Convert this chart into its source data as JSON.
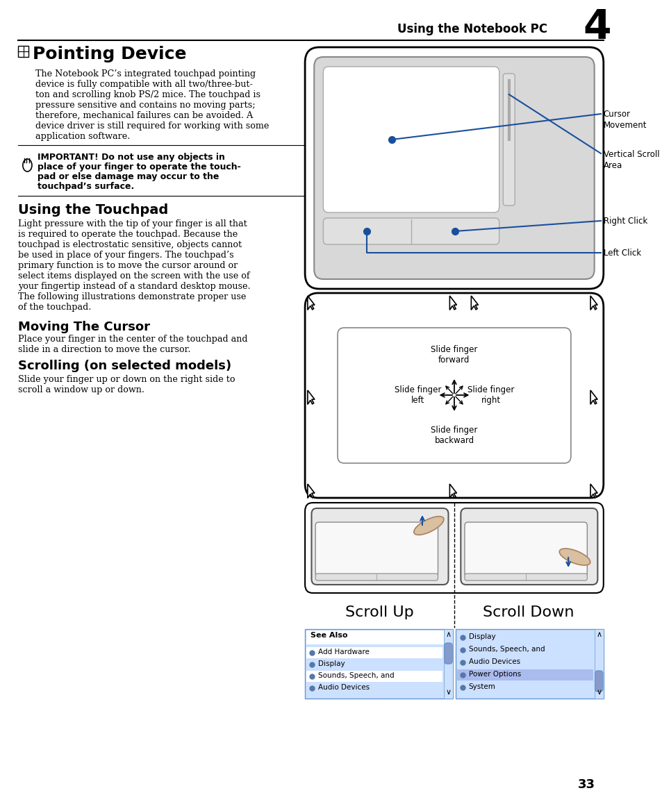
{
  "page_title": "Using the Notebook PC",
  "chapter_num": "4",
  "page_num": "33",
  "section1_title": "Pointing Device",
  "section1_body_lines": [
    "The Notebook PC’s integrated touchpad pointing",
    "device is fully compatible with all two/three-but-",
    "ton and scrolling knob PS/2 mice. The touchpad is",
    "pressure sensitive and contains no moving parts;",
    "therefore, mechanical failures can be avoided. A",
    "device driver is still required for working with some",
    "application software."
  ],
  "warning_text_lines": [
    "IMPORTANT! Do not use any objects in",
    "place of your finger to operate the touch-",
    "pad or else damage may occur to the",
    "touchpad’s surface."
  ],
  "section2_title": "Using the Touchpad",
  "section2_body_lines": [
    "Light pressure with the tip of your finger is all that",
    "is required to operate the touchpad. Because the",
    "touchpad is electrostatic sensitive, objects cannot",
    "be used in place of your fingers. The touchpad’s",
    "primary function is to move the cursor around or",
    "select items displayed on the screen with the use of",
    "your fingertip instead of a standard desktop mouse.",
    "The following illustrations demonstrate proper use",
    "of the touchpad."
  ],
  "section3_title": "Moving The Cursor",
  "section3_body_lines": [
    "Place your finger in the center of the touchpad and",
    "slide in a direction to move the cursor."
  ],
  "section4_title": "Scrolling (on selected models)",
  "section4_body_lines": [
    "Slide your finger up or down on the right side to",
    "scroll a window up or down."
  ],
  "scroll_up_label": "Scroll Up",
  "scroll_down_label": "Scroll Down",
  "cursor_movement_label": "Cursor\nMovement",
  "vertical_scroll_label": "Vertical Scroll\nArea",
  "right_click_label": "Right Click",
  "left_click_label": "Left Click",
  "slide_forward": "Slide finger\nforward",
  "slide_backward": "Slide finger\nbackward",
  "slide_left": "Slide finger\nleft",
  "slide_right": "Slide finger\nright",
  "bg_color": "#ffffff",
  "text_color": "#000000",
  "blue_color": "#1a4f9c",
  "gray_color": "#aaaaaa",
  "light_gray": "#e8e8e8",
  "mid_gray": "#888888",
  "win_blue": "#cce0ff",
  "win_blue_dark": "#6699cc",
  "win_blue_header": "#4477aa"
}
